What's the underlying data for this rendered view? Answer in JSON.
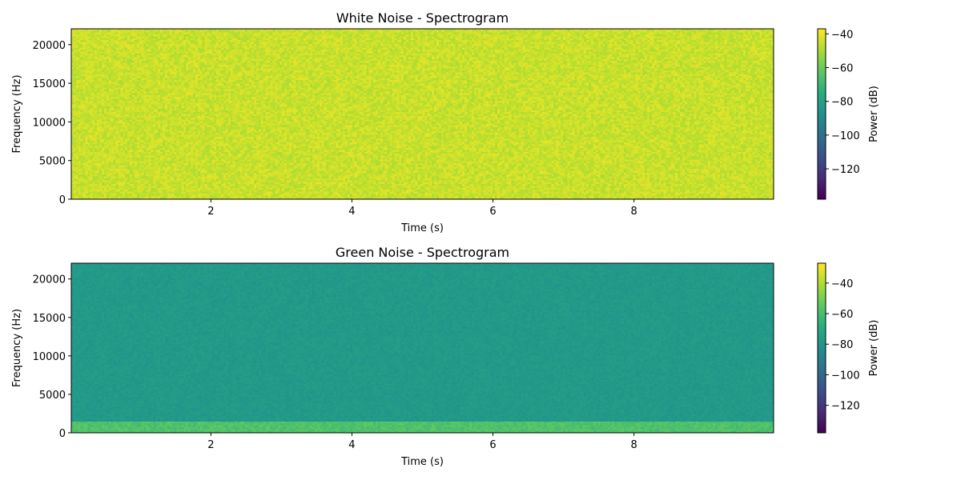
{
  "chart_data": [
    {
      "type": "heatmap",
      "title": "White Noise - Spectrogram",
      "xlabel": "Time (s)",
      "ylabel": "Frequency (Hz)",
      "xlim": [
        0.02,
        9.98
      ],
      "ylim": [
        0,
        22050
      ],
      "xticks": [
        2,
        4,
        6,
        8
      ],
      "yticks": [
        0,
        5000,
        10000,
        15000,
        20000
      ],
      "colormap": "viridis",
      "colorbar": {
        "label": "Power (dB)",
        "range": [
          -138,
          -37
        ],
        "ticks": [
          -40,
          -60,
          -80,
          -100,
          -120
        ]
      },
      "power_db": {
        "typical": -45,
        "min_in_plot": -60,
        "max_in_plot": -40,
        "low_freq_band": null
      }
    },
    {
      "type": "heatmap",
      "title": "Green Noise - Spectrogram",
      "xlabel": "Time (s)",
      "ylabel": "Frequency (Hz)",
      "xlim": [
        0.02,
        9.98
      ],
      "ylim": [
        0,
        22050
      ],
      "xticks": [
        2,
        4,
        6,
        8
      ],
      "yticks": [
        0,
        5000,
        10000,
        15000,
        20000
      ],
      "colormap": "viridis",
      "colorbar": {
        "label": "Power (dB)",
        "range": [
          -138,
          -27
        ],
        "ticks": [
          -40,
          -60,
          -80,
          -100,
          -120
        ]
      },
      "power_db": {
        "typical": -78,
        "min_in_plot": -85,
        "max_in_plot": -45,
        "low_freq_band": {
          "max_hz": 1500,
          "power_db": -58
        }
      }
    }
  ]
}
